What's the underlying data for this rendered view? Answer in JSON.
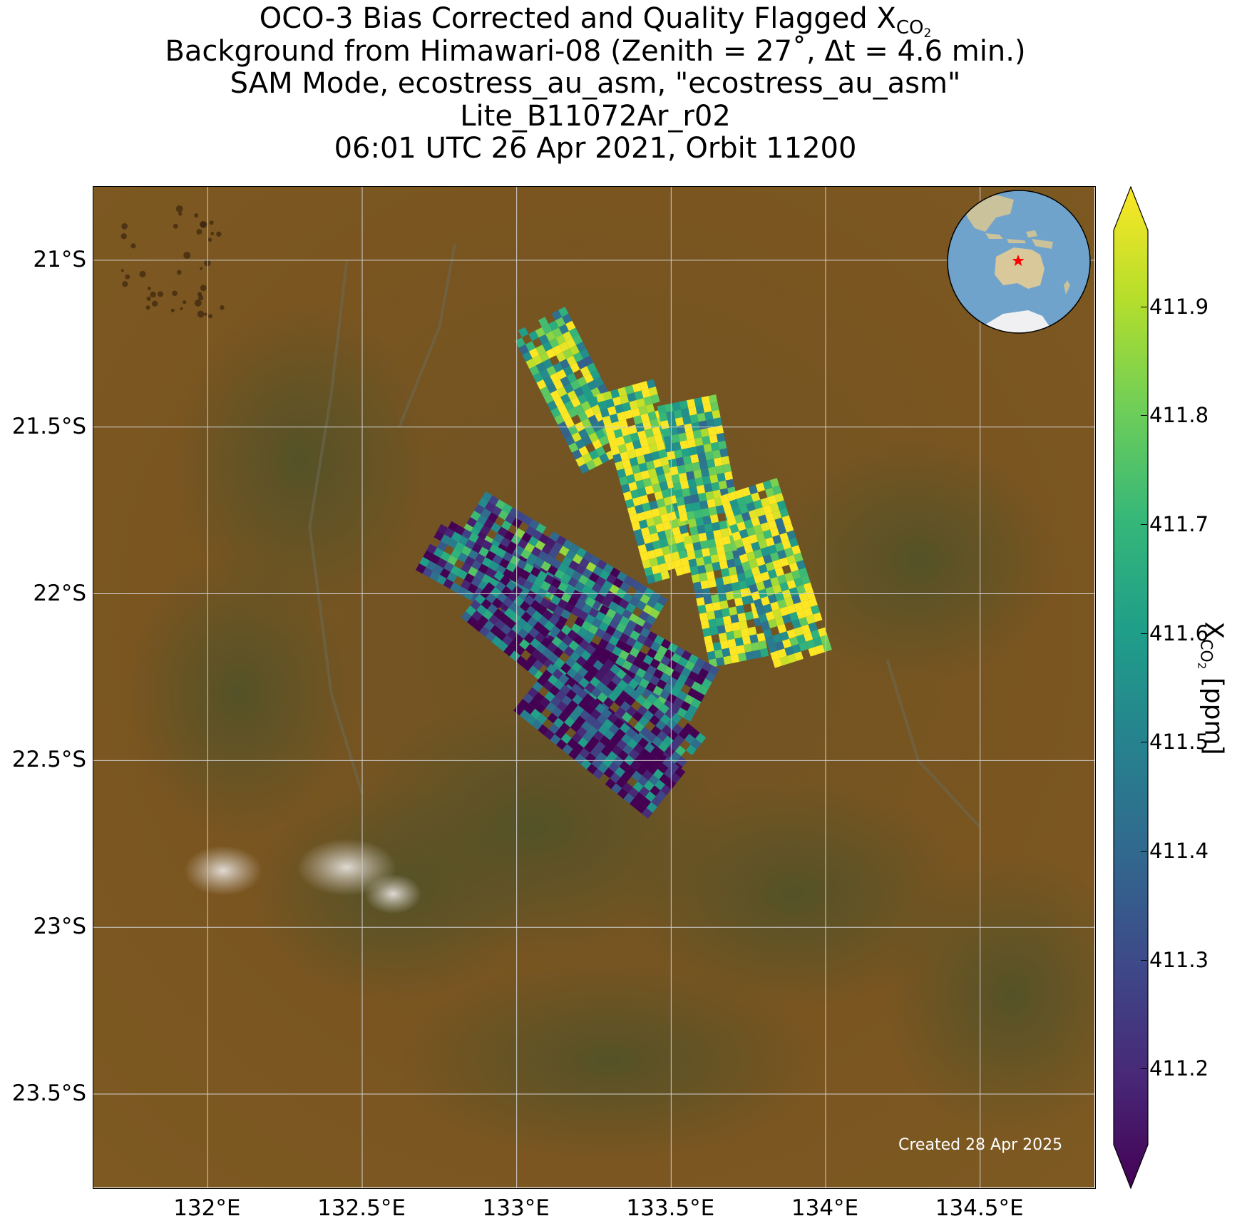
{
  "title": {
    "line1_prefix": "OCO-3 Bias Corrected and Quality Flagged X",
    "line1_sub": "CO",
    "line1_subsub": "2",
    "line2": "Background from Himawari-08 (Zenith = 27$^\\circ$, Δt =  4.6 min.)",
    "line2_display": "Background from Himawari-08 (Zenith = 27˚, Δt =  4.6 min.)",
    "line3": "SAM Mode, ecostress_au_asm, \"ecostress_au_asm\"",
    "line4": "Lite_B11072Ar_r02",
    "line5": "06:01 UTC 26 Apr 2021, Orbit 11200"
  },
  "map": {
    "lon_range": [
      131.63,
      134.87
    ],
    "lat_range": [
      -23.78,
      -20.78
    ],
    "lat_ticks": [
      "21°S",
      "21.5°S",
      "22°S",
      "22.5°S",
      "23°S",
      "23.5°S"
    ],
    "lat_values": [
      -21.0,
      -21.5,
      -22.0,
      -22.5,
      -23.0,
      -23.5
    ],
    "lon_ticks": [
      "132°E",
      "132.5°E",
      "133°E",
      "133.5°E",
      "134°E",
      "134.5°E"
    ],
    "lon_values": [
      132.0,
      132.5,
      133.0,
      133.5,
      134.0,
      134.5
    ],
    "grid": true,
    "background": "Himawari-08 true color imagery",
    "colors": {
      "desert": "#7a5520",
      "vegetation": "#5c5a2c",
      "salt_lake": "#d8d2cc",
      "grid": "#d0d0d0"
    },
    "inset_globe": {
      "ocean": "#6fa3cc",
      "land": "#d8c89a",
      "ice": "#f0f0f2",
      "marker": "red-star",
      "marker_color": "#ff0000"
    }
  },
  "colorbar": {
    "label_prefix": "X",
    "label_sub": "CO",
    "label_subsub": "2",
    "label_suffix": " [ppm]",
    "ticks": [
      "411.2",
      "411.3",
      "411.4",
      "411.5",
      "411.6",
      "411.7",
      "411.8",
      "411.9"
    ],
    "tick_values": [
      411.2,
      411.3,
      411.4,
      411.5,
      411.6,
      411.7,
      411.8,
      411.9
    ],
    "vmin": 411.13,
    "vmax": 411.97,
    "extend": "both",
    "colormap": "viridis",
    "colormap_stops": [
      "#440154",
      "#482878",
      "#3e4989",
      "#31688e",
      "#26828e",
      "#1f9e89",
      "#35b779",
      "#6ece58",
      "#b5de2b",
      "#fde725"
    ]
  },
  "created": "Created 28 Apr 2025",
  "chart_data": {
    "type": "heatmap",
    "title": "OCO-3 Bias Corrected and Quality Flagged XCO2",
    "xlabel": "",
    "ylabel": "",
    "value_label": "XCO2 [ppm]",
    "value_range": [
      411.13,
      411.97
    ],
    "swaths": [
      {
        "name": "swath-1",
        "start": [
          133.07,
          -21.18
        ],
        "end": [
          133.3,
          -21.6
        ],
        "value": 411.75
      },
      {
        "name": "swath-2",
        "start": [
          133.35,
          -21.38
        ],
        "end": [
          133.52,
          -21.95
        ],
        "value": 411.86
      },
      {
        "name": "swath-3",
        "start": [
          133.55,
          -21.42
        ],
        "end": [
          133.72,
          -22.2
        ],
        "value": 411.78
      },
      {
        "name": "swath-4",
        "start": [
          133.75,
          -21.68
        ],
        "end": [
          133.93,
          -22.2
        ],
        "value": 411.8
      },
      {
        "name": "swath-5",
        "start": [
          132.85,
          -21.77
        ],
        "end": [
          133.45,
          -22.1
        ],
        "value": 411.48
      },
      {
        "name": "swath-6",
        "start": [
          132.72,
          -21.85
        ],
        "end": [
          133.6,
          -22.3
        ],
        "value": 411.38
      },
      {
        "name": "swath-7",
        "start": [
          132.88,
          -22.0
        ],
        "end": [
          133.55,
          -22.5
        ],
        "value": 411.32
      },
      {
        "name": "swath-8",
        "start": [
          133.05,
          -22.28
        ],
        "end": [
          133.48,
          -22.6
        ],
        "value": 411.25
      }
    ]
  }
}
